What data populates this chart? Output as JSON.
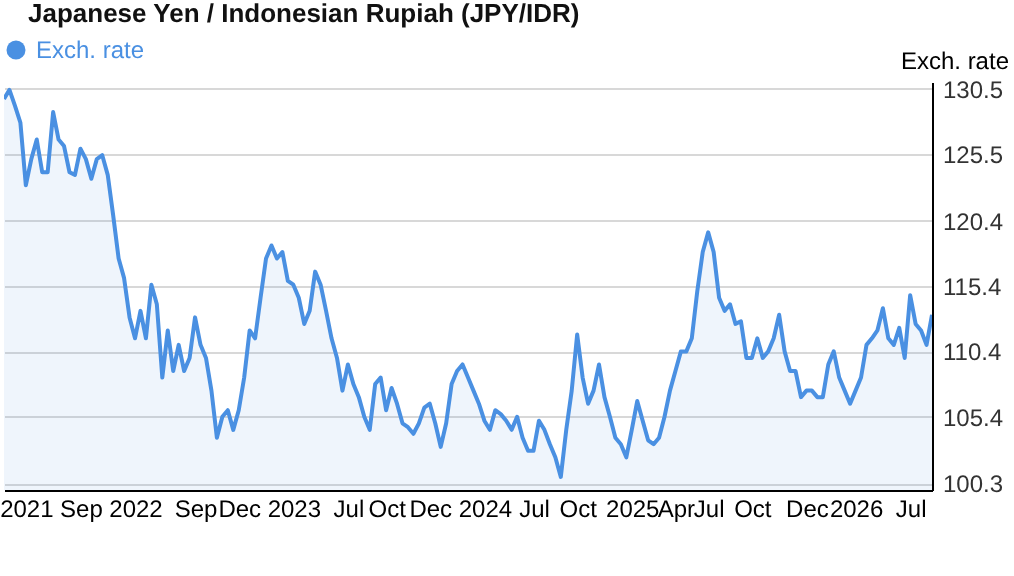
{
  "chart_data": {
    "type": "area",
    "title": "Japanese Yen / Indonesian Rupiah (JPY/IDR)",
    "ylabel": "Exch. rate",
    "categories": [
      null,
      null,
      null,
      null,
      "2021",
      null,
      null,
      null,
      null,
      null,
      null,
      null,
      null,
      null,
      "Sep",
      null,
      null,
      null,
      null,
      null,
      null,
      null,
      null,
      null,
      "2022",
      null,
      null,
      null,
      null,
      null,
      null,
      null,
      null,
      null,
      null,
      "Sep",
      null,
      null,
      null,
      null,
      null,
      null,
      null,
      "Dec",
      null,
      null,
      null,
      null,
      null,
      null,
      null,
      null,
      null,
      "2023",
      null,
      null,
      null,
      null,
      null,
      null,
      null,
      null,
      null,
      "Jul",
      null,
      null,
      null,
      null,
      null,
      null,
      "Oct",
      null,
      null,
      null,
      null,
      null,
      null,
      null,
      "Dec",
      null,
      null,
      null,
      null,
      null,
      null,
      null,
      null,
      null,
      "2024",
      null,
      null,
      null,
      null,
      null,
      null,
      null,
      null,
      "Jul",
      null,
      null,
      null,
      null,
      null,
      null,
      null,
      "Oct",
      null,
      null,
      null,
      null,
      null,
      null,
      null,
      null,
      null,
      "2025",
      null,
      null,
      null,
      null,
      null,
      null,
      null,
      "Apr",
      null,
      null,
      null,
      null,
      null,
      "Jul",
      null,
      null,
      null,
      null,
      null,
      null,
      null,
      "Oct",
      null,
      null,
      null,
      null,
      null,
      null,
      null,
      null,
      null,
      "Dec",
      null,
      null,
      null,
      null,
      null,
      null,
      null,
      null,
      "2026",
      null,
      null,
      null,
      null,
      null,
      null,
      null,
      null,
      null,
      "Jul",
      null,
      null,
      null,
      null
    ],
    "ylim": [
      99.8,
      131.0
    ],
    "yticks": [
      {
        "value": 100.3,
        "label": "100.3"
      },
      {
        "value": 105.4,
        "label": "105.4"
      },
      {
        "value": 110.4,
        "label": "110.4"
      },
      {
        "value": 115.4,
        "label": "115.4"
      },
      {
        "value": 120.4,
        "label": "120.4"
      },
      {
        "value": 125.5,
        "label": "125.5"
      },
      {
        "value": 130.5,
        "label": "130.5"
      }
    ],
    "grid": "y",
    "legend": "top left",
    "series": [
      {
        "name": "Exch. rate",
        "color": "#4a90e2",
        "values": [
          129.7,
          130.4,
          129.2,
          127.9,
          123.1,
          125.1,
          126.6,
          124.1,
          124.1,
          128.7,
          126.6,
          126.1,
          124.1,
          123.9,
          125.9,
          125.1,
          123.6,
          125.1,
          125.4,
          123.9,
          120.8,
          117.5,
          116.0,
          113.0,
          111.4,
          113.5,
          111.4,
          115.5,
          114.0,
          108.4,
          112.0,
          108.9,
          110.9,
          108.9,
          109.9,
          113.0,
          110.9,
          109.9,
          107.4,
          103.8,
          105.4,
          105.9,
          104.4,
          105.9,
          108.4,
          112.0,
          111.4,
          114.5,
          117.5,
          118.5,
          117.5,
          118.0,
          115.8,
          115.5,
          114.5,
          112.5,
          113.5,
          116.5,
          115.5,
          113.5,
          111.4,
          109.9,
          107.4,
          109.4,
          107.9,
          106.9,
          105.4,
          104.4,
          107.9,
          108.4,
          105.9,
          107.6,
          106.4,
          104.9,
          104.6,
          104.1,
          104.9,
          106.1,
          106.4,
          104.9,
          103.1,
          104.9,
          107.9,
          108.9,
          109.4,
          108.4,
          107.4,
          106.4,
          105.1,
          104.4,
          105.9,
          105.6,
          105.1,
          104.4,
          105.4,
          103.8,
          102.8,
          102.8,
          105.1,
          104.4,
          103.3,
          102.3,
          100.8,
          104.4,
          107.4,
          111.7,
          108.4,
          106.4,
          107.4,
          109.4,
          106.9,
          105.4,
          103.8,
          103.3,
          102.3,
          104.4,
          106.6,
          105.1,
          103.6,
          103.3,
          103.8,
          105.4,
          107.4,
          108.9,
          110.4,
          110.4,
          111.4,
          115.0,
          118.0,
          119.5,
          118.0,
          114.5,
          113.5,
          114.0,
          112.5,
          112.7,
          109.9,
          109.9,
          111.4,
          109.9,
          110.4,
          111.4,
          113.2,
          110.4,
          108.9,
          108.9,
          106.9,
          107.4,
          107.4,
          106.9,
          106.9,
          109.4,
          110.4,
          108.4,
          107.4,
          106.4,
          107.4,
          108.4,
          110.9,
          111.4,
          112.0,
          113.7,
          111.4,
          110.9,
          112.2,
          109.9,
          114.7,
          112.5,
          112.0,
          110.9,
          113.2
        ]
      }
    ]
  }
}
